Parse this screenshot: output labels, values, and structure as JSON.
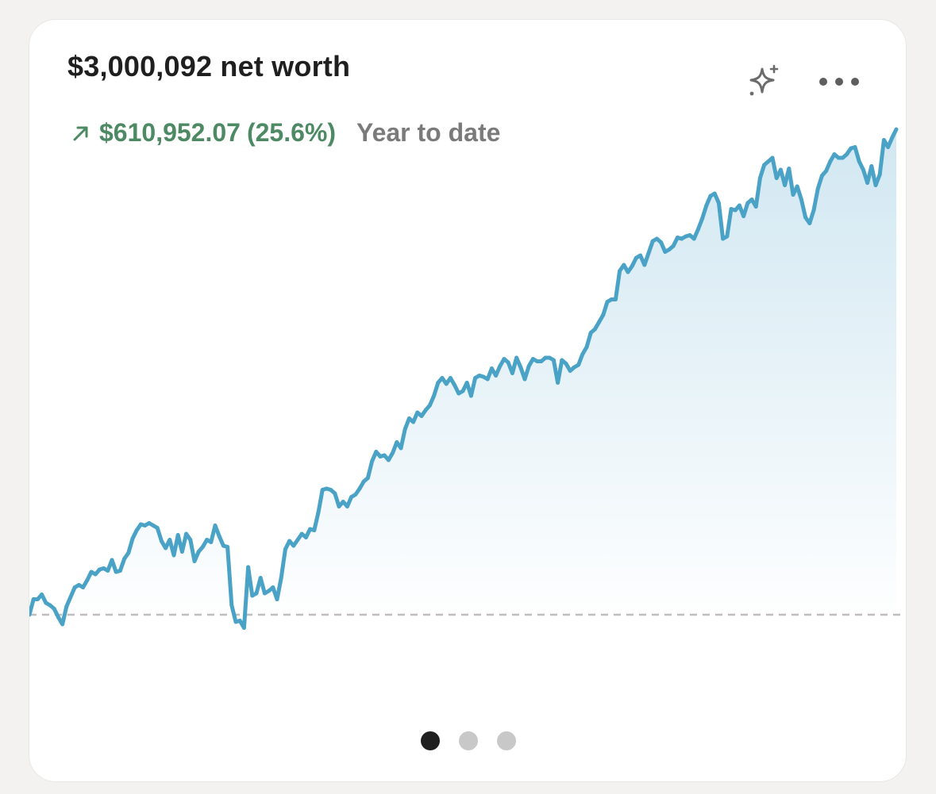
{
  "card": {
    "title": "$3,000,092 net worth",
    "change_value": "$610,952.07",
    "change_percent": "(25.6%)",
    "period": "Year to date",
    "trend_direction": "up",
    "icons": {
      "trend": "arrow-up-right-icon",
      "sparkle": "sparkle-icon",
      "more": "more-horizontal-icon"
    },
    "colors": {
      "positive": "#4d8a64",
      "line": "#4aa3c6",
      "baseline": "#bdbdbd"
    }
  },
  "pagination": {
    "count": 3,
    "active_index": 0
  },
  "chart_data": {
    "type": "area",
    "baseline": 0,
    "values": [
      0,
      1.3,
      1.3,
      1.7,
      1.0,
      0.8,
      0.5,
      -0.2,
      -0.8,
      0.7,
      1.5,
      2.3,
      2.5,
      2.3,
      2.9,
      3.6,
      3.4,
      3.8,
      3.9,
      3.7,
      4.6,
      3.6,
      3.7,
      4.7,
      5.2,
      6.4,
      7.1,
      7.6,
      7.5,
      7.7,
      7.5,
      7.3,
      6.2,
      5.6,
      6.3,
      5.0,
      6.7,
      5.3,
      6.8,
      6.3,
      4.5,
      5.3,
      5.7,
      6.3,
      6.1,
      7.5,
      6.6,
      5.8,
      5.7,
      0.8,
      -0.6,
      -0.5,
      -1.1,
      4.0,
      1.6,
      1.8,
      3.1,
      1.8,
      2.0,
      2.3,
      1.3,
      3.1,
      5.5,
      6.2,
      5.8,
      6.3,
      6.8,
      6.5,
      7.2,
      7.1,
      8.6,
      10.5,
      10.6,
      10.5,
      10.2,
      9.1,
      9.5,
      9.1,
      9.9,
      10.1,
      10.6,
      11.2,
      11.5,
      12.9,
      13.7,
      13.3,
      13.4,
      13.0,
      13.6,
      14.5,
      14.0,
      15.6,
      16.5,
      16.2,
      17.0,
      16.7,
      17.2,
      17.6,
      18.4,
      19.5,
      19.9,
      19.4,
      19.9,
      19.3,
      18.6,
      18.8,
      19.5,
      18.4,
      19.9,
      20.1,
      20.0,
      19.8,
      20.7,
      20.1,
      20.9,
      21.5,
      21.2,
      20.3,
      21.6,
      20.8,
      19.8,
      20.9,
      21.5,
      21.3,
      21.3,
      21.6,
      21.6,
      21.4,
      19.5,
      21.4,
      21.1,
      20.5,
      20.8,
      21.0,
      21.9,
      22.5,
      23.7,
      24.0,
      24.6,
      25.2,
      26.3,
      26.5,
      26.5,
      28.9,
      29.4,
      28.8,
      29.3,
      30.0,
      30.2,
      29.4,
      30.4,
      31.4,
      31.6,
      31.3,
      30.5,
      30.7,
      31.0,
      31.7,
      31.6,
      31.8,
      31.9,
      31.6,
      32.4,
      33.3,
      34.4,
      35.2,
      35.4,
      34.6,
      31.6,
      31.8,
      34.1,
      34.0,
      34.4,
      33.5,
      34.6,
      34.9,
      34.3,
      36.7,
      37.8,
      38.1,
      38.4,
      36.7,
      37.4,
      36.1,
      37.5,
      35.3,
      36.0,
      34.9,
      33.4,
      32.9,
      34.0,
      35.8,
      36.9,
      37.3,
      38.1,
      38.7,
      38.4,
      38.4,
      38.7,
      39.2,
      39.3,
      38.1,
      37.4,
      36.3,
      37.7,
      36.1,
      37.0,
      39.9,
      39.3,
      40.1,
      40.8
    ],
    "ylim": [
      -3,
      46
    ]
  }
}
